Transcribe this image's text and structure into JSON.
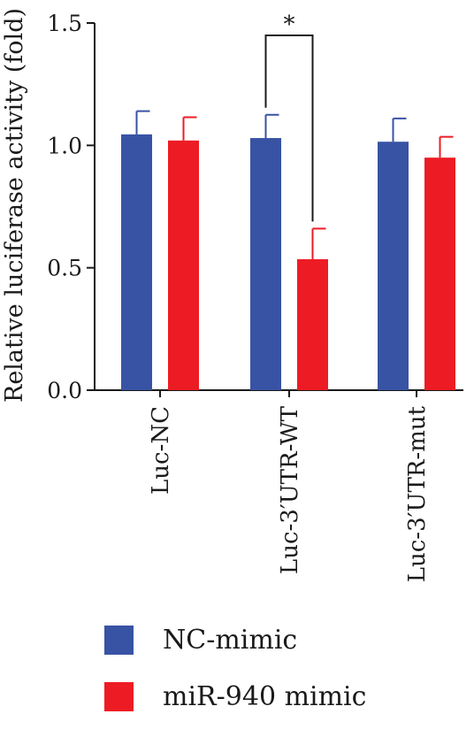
{
  "chart_data": {
    "type": "bar",
    "ylabel": "Relative luciferase activity (fold)",
    "xlabel": "",
    "ylim": [
      0,
      1.5
    ],
    "yticks": [
      0.0,
      0.5,
      1.0,
      1.5
    ],
    "ytick_labels": [
      "0.0",
      "0.5",
      "1.0",
      "1.5"
    ],
    "categories": [
      "Luc-NC",
      "Luc-3′UTR-WT",
      "Luc-3′UTR-mut"
    ],
    "series": [
      {
        "name": "NC-mimic",
        "color": "#3853a4",
        "values": [
          1.045,
          1.03,
          1.015
        ],
        "errors": [
          0.095,
          0.095,
          0.095
        ]
      },
      {
        "name": "miR-940 mimic",
        "color": "#ed1c24",
        "values": [
          1.02,
          0.535,
          0.95
        ],
        "errors": [
          0.095,
          0.125,
          0.085
        ]
      }
    ],
    "annotations": [
      {
        "text": "*",
        "type": "significance-bracket",
        "category": "Luc-3′UTR-WT",
        "between": [
          "NC-mimic",
          "miR-940 mimic"
        ]
      }
    ],
    "legend_placement": "bottom-left"
  }
}
